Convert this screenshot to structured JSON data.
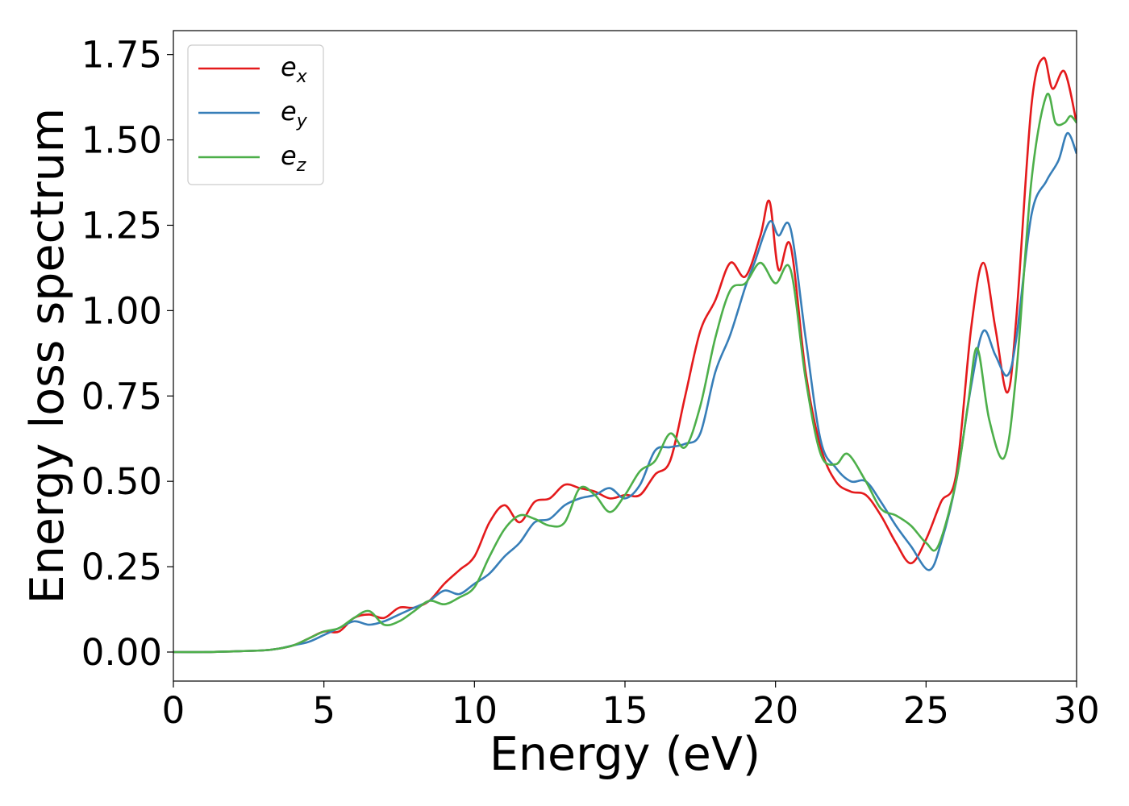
{
  "chart_data": {
    "type": "line",
    "title": "",
    "xlabel": "Energy (eV)",
    "ylabel": "Energy loss spectrum",
    "xlim": [
      0,
      30
    ],
    "ylim": [
      -0.085,
      1.82
    ],
    "xticks": [
      0,
      5,
      10,
      15,
      20,
      25,
      30
    ],
    "xtick_labels": [
      "0",
      "5",
      "10",
      "15",
      "20",
      "25",
      "30"
    ],
    "yticks": [
      0,
      0.25,
      0.5,
      0.75,
      1.0,
      1.25,
      1.5,
      1.75
    ],
    "ytick_labels": [
      "0.00",
      "0.25",
      "0.50",
      "0.75",
      "1.00",
      "1.25",
      "1.50",
      "1.75"
    ],
    "grid": false,
    "legend_position": "top-left",
    "series": [
      {
        "name": "e",
        "sub": "x",
        "color": "#e41a1c",
        "x": [
          0,
          1,
          2,
          3,
          3.5,
          4,
          4.5,
          5,
          5.5,
          6,
          6.5,
          7,
          7.5,
          8,
          8.5,
          9,
          9.5,
          10,
          10.5,
          11,
          11.5,
          12,
          12.5,
          13,
          13.5,
          14,
          14.5,
          15,
          15.5,
          16,
          16.5,
          17,
          17.5,
          18,
          18.5,
          19,
          19.5,
          19.8,
          20.1,
          20.5,
          21,
          21.5,
          22,
          22.5,
          23,
          23.5,
          24,
          24.5,
          25,
          25.5,
          26,
          26.5,
          26.9,
          27.3,
          27.7,
          28,
          28.5,
          28.9,
          29.2,
          29.6,
          30
        ],
        "y": [
          0,
          0,
          0.002,
          0.005,
          0.01,
          0.02,
          0.04,
          0.06,
          0.06,
          0.1,
          0.11,
          0.1,
          0.13,
          0.13,
          0.15,
          0.2,
          0.24,
          0.28,
          0.38,
          0.43,
          0.38,
          0.44,
          0.45,
          0.49,
          0.48,
          0.47,
          0.45,
          0.46,
          0.46,
          0.52,
          0.56,
          0.75,
          0.94,
          1.03,
          1.14,
          1.1,
          1.22,
          1.32,
          1.12,
          1.19,
          0.82,
          0.6,
          0.5,
          0.47,
          0.46,
          0.4,
          0.32,
          0.26,
          0.33,
          0.44,
          0.52,
          0.95,
          1.14,
          0.95,
          0.76,
          0.98,
          1.6,
          1.74,
          1.65,
          1.7,
          1.55
        ]
      },
      {
        "name": "e",
        "sub": "y",
        "color": "#377eb8",
        "x": [
          0,
          1,
          2,
          3,
          3.5,
          4,
          4.5,
          5,
          5.5,
          6,
          6.5,
          7,
          7.5,
          8,
          8.5,
          9,
          9.5,
          10,
          10.5,
          11,
          11.5,
          12,
          12.5,
          13,
          13.5,
          14,
          14.5,
          15,
          15.5,
          16,
          16.5,
          17,
          17.5,
          18,
          18.5,
          19,
          19.3,
          19.8,
          20.1,
          20.5,
          21,
          21.5,
          22,
          22.5,
          23,
          23.5,
          24,
          24.5,
          25.1,
          25.5,
          26,
          26.5,
          26.9,
          27.3,
          27.7,
          28,
          28.5,
          29,
          29.4,
          29.7,
          30
        ],
        "y": [
          0,
          0,
          0.002,
          0.005,
          0.01,
          0.02,
          0.03,
          0.05,
          0.07,
          0.09,
          0.08,
          0.09,
          0.11,
          0.13,
          0.15,
          0.18,
          0.17,
          0.2,
          0.23,
          0.28,
          0.32,
          0.38,
          0.39,
          0.43,
          0.45,
          0.46,
          0.48,
          0.45,
          0.49,
          0.59,
          0.6,
          0.61,
          0.64,
          0.82,
          0.93,
          1.07,
          1.14,
          1.26,
          1.22,
          1.24,
          0.92,
          0.62,
          0.54,
          0.5,
          0.5,
          0.44,
          0.37,
          0.31,
          0.24,
          0.32,
          0.5,
          0.78,
          0.94,
          0.87,
          0.81,
          0.92,
          1.28,
          1.38,
          1.44,
          1.52,
          1.46
        ]
      },
      {
        "name": "e",
        "sub": "z",
        "color": "#4daf4a",
        "x": [
          0,
          1,
          2,
          3,
          3.5,
          4,
          4.5,
          5,
          5.5,
          6,
          6.5,
          7,
          7.5,
          8,
          8.5,
          9,
          9.5,
          10,
          10.5,
          11,
          11.5,
          12,
          12.5,
          13,
          13.5,
          14,
          14.5,
          15,
          15.5,
          16,
          16.5,
          17,
          17.5,
          18,
          18.5,
          19,
          19.5,
          20,
          20.5,
          21,
          21.5,
          22,
          22.4,
          23,
          23.5,
          24,
          24.5,
          25,
          25.4,
          26,
          26.4,
          26.7,
          27.1,
          27.6,
          28,
          28.5,
          29,
          29.3,
          29.6,
          29.8,
          30
        ],
        "y": [
          0,
          0,
          0.002,
          0.005,
          0.01,
          0.02,
          0.04,
          0.06,
          0.07,
          0.1,
          0.12,
          0.08,
          0.09,
          0.12,
          0.15,
          0.14,
          0.16,
          0.19,
          0.28,
          0.36,
          0.4,
          0.39,
          0.37,
          0.38,
          0.48,
          0.46,
          0.41,
          0.46,
          0.53,
          0.56,
          0.64,
          0.6,
          0.72,
          0.92,
          1.06,
          1.08,
          1.14,
          1.08,
          1.12,
          0.8,
          0.58,
          0.55,
          0.58,
          0.5,
          0.42,
          0.4,
          0.37,
          0.32,
          0.31,
          0.5,
          0.73,
          0.89,
          0.68,
          0.57,
          0.82,
          1.38,
          1.63,
          1.55,
          1.55,
          1.57,
          1.55
        ]
      }
    ]
  }
}
